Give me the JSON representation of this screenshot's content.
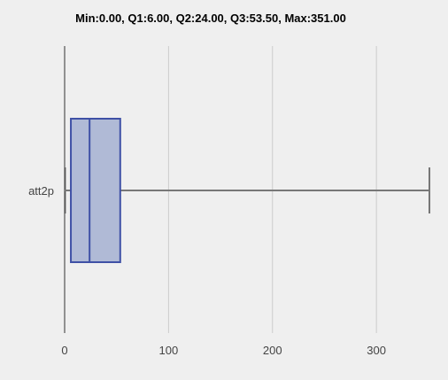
{
  "chart_data": {
    "type": "boxplot",
    "title": "Min:0.00, Q1:6.00, Q2:24.00, Q3:53.50, Max:351.00",
    "orientation": "horizontal",
    "categories": [
      "att2p"
    ],
    "stats": {
      "min": 0.0,
      "q1": 6.0,
      "median": 24.0,
      "q3": 53.5,
      "max": 351.0
    },
    "xlim": [
      0,
      351
    ],
    "xticks": [
      0,
      100,
      200,
      300
    ],
    "xtick_labels": [
      "0",
      "100",
      "200",
      "300"
    ],
    "grid": true,
    "colors": {
      "box_fill": "#b0bad6",
      "box_stroke": "#3f51a6",
      "whisker": "#777777",
      "grid": "#cccccc",
      "axis": "#333333"
    }
  }
}
